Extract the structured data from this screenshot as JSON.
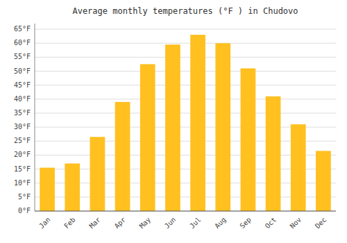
{
  "chart_data": {
    "type": "bar",
    "title": "Average monthly temperatures (°F ) in Chudovo",
    "categories": [
      "Jan",
      "Feb",
      "Mar",
      "Apr",
      "May",
      "Jun",
      "Jul",
      "Aug",
      "Sep",
      "Oct",
      "Nov",
      "Dec"
    ],
    "values": [
      15.5,
      17.0,
      26.5,
      39.0,
      52.5,
      59.5,
      63.0,
      60.0,
      51.0,
      41.0,
      31.0,
      21.5
    ],
    "color": "#FFC020",
    "ylim": [
      0,
      67
    ],
    "yticks": [
      {
        "value": 0,
        "label": "0°F"
      },
      {
        "value": 5,
        "label": "5°F"
      },
      {
        "value": 10,
        "label": "10°F"
      },
      {
        "value": 15,
        "label": "15°F"
      },
      {
        "value": 20,
        "label": "20°F"
      },
      {
        "value": 25,
        "label": "25°F"
      },
      {
        "value": 30,
        "label": "30°F"
      },
      {
        "value": 35,
        "label": "35°F"
      },
      {
        "value": 40,
        "label": "40°F"
      },
      {
        "value": 45,
        "label": "45°F"
      },
      {
        "value": 50,
        "label": "50°F"
      },
      {
        "value": 55,
        "label": "55°F"
      },
      {
        "value": 60,
        "label": "60°F"
      },
      {
        "value": 65,
        "label": "65°F"
      }
    ],
    "grid": true
  }
}
